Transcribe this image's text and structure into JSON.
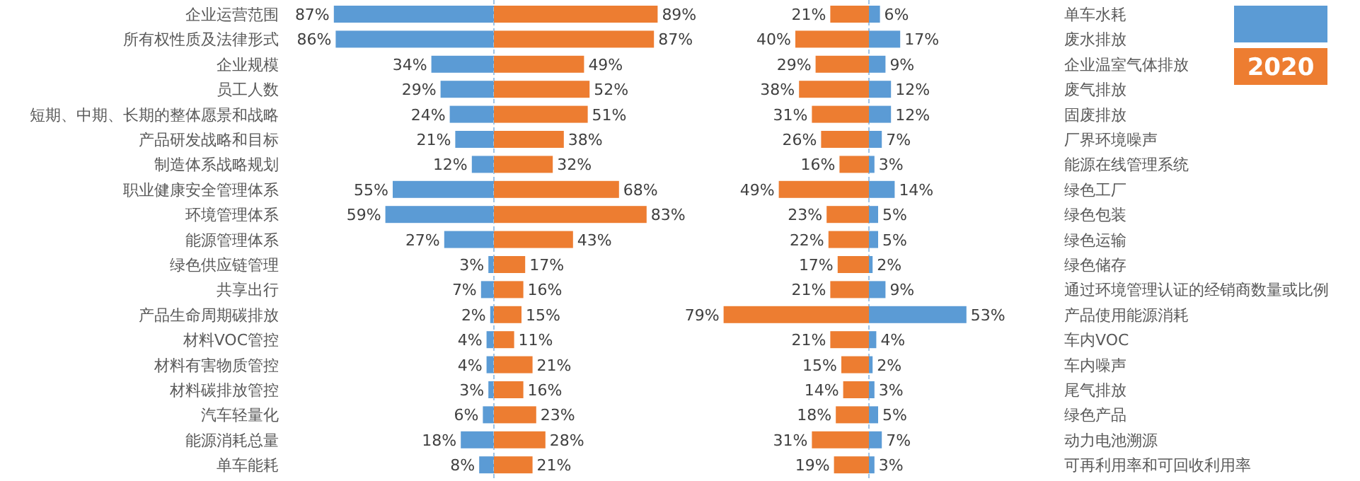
{
  "chart_data": [
    {
      "type": "bar",
      "orientation": "horizontal",
      "categories": [
        "企业运营范围",
        "所有权性质及法律形式",
        "企业规模",
        "员工人数",
        "短期、中期、长期的整体愿景和战略",
        "产品研发战略和目标",
        "制造体系战略规划",
        "职业健康安全管理体系",
        "环境管理体系",
        "能源管理体系",
        "绿色供应链管理",
        "共享出行",
        "产品生命周期碳排放",
        "材料VOC管控",
        "材料有害物质管控",
        "材料碳排放管控",
        "汽车轻量化",
        "能源消耗总量",
        "单车能耗"
      ],
      "series": [
        {
          "color": "#5b9bd5",
          "values": [
            87,
            86,
            34,
            29,
            24,
            21,
            12,
            55,
            59,
            27,
            3,
            7,
            2,
            4,
            4,
            3,
            6,
            18,
            8
          ],
          "value_labels": [
            "87%",
            "86%",
            "34%",
            "29%",
            "24%",
            "21%",
            "12%",
            "55%",
            "59%",
            "27%",
            "3%",
            "7%",
            "2%",
            "4%",
            "4%",
            "3%",
            "6%",
            "18%",
            "8%"
          ]
        }
      ]
    },
    {
      "type": "bar",
      "orientation": "horizontal",
      "categories": [
        null,
        null,
        null,
        null,
        null,
        null,
        null,
        null,
        null,
        null,
        null,
        null,
        null,
        null,
        null,
        null,
        null,
        null,
        null
      ],
      "series": [
        {
          "color": "#ed7d31",
          "values": [
            89,
            87,
            49,
            52,
            51,
            38,
            32,
            68,
            83,
            43,
            17,
            16,
            15,
            11,
            21,
            16,
            23,
            28,
            21
          ],
          "value_labels": [
            "89%",
            "87%",
            "49%",
            "52%",
            "51%",
            "38%",
            "32%",
            "68%",
            "83%",
            "43%",
            "17%",
            "16%",
            "15%",
            "11%",
            "21%",
            "16%",
            "23%",
            "28%",
            "21%"
          ]
        }
      ]
    },
    {
      "type": "bar",
      "orientation": "horizontal",
      "legend": "top right",
      "categories": [
        null,
        null,
        null,
        null,
        null,
        null,
        null,
        null,
        null,
        null,
        null,
        null,
        null,
        null,
        null,
        null,
        null,
        null,
        null
      ],
      "series": [
        {
          "name": "2020",
          "color": "#ed7d31",
          "values": [
            21,
            40,
            29,
            38,
            31,
            26,
            16,
            49,
            23,
            22,
            17,
            21,
            79,
            21,
            15,
            14,
            18,
            31,
            19
          ],
          "value_labels": [
            "21%",
            "40%",
            "29%",
            "38%",
            "31%",
            "26%",
            "16%",
            "49%",
            "23%",
            "22%",
            "17%",
            "21%",
            "79%",
            "21%",
            "15%",
            "14%",
            "18%",
            "31%",
            "19%"
          ]
        }
      ]
    },
    {
      "type": "bar",
      "orientation": "horizontal",
      "categories": [
        "单车水耗",
        "废水排放",
        "企业温室气体排放",
        "废气排放",
        "固废排放",
        "厂界环境噪声",
        "能源在线管理系统",
        "绿色工厂",
        "绿色包装",
        "绿色运输",
        "绿色储存",
        "通过环境管理认证的经销商数量或比例",
        "产品使用能源消耗",
        "车内VOC",
        "车内噪声",
        "尾气排放",
        "绿色产品",
        "动力电池溯源",
        "可再利用率和可回收利用率"
      ],
      "series": [
        {
          "color": "#5b9bd5",
          "values": [
            6,
            17,
            9,
            12,
            12,
            7,
            3,
            14,
            5,
            5,
            2,
            9,
            53,
            4,
            2,
            3,
            5,
            7,
            3
          ],
          "value_labels": [
            "6%",
            "17%",
            "9%",
            "12%",
            "12%",
            "7%",
            "3%",
            "14%",
            "5%",
            "5%",
            "2%",
            "9%",
            "53%",
            "4%",
            "2%",
            "3%",
            "5%",
            "7%",
            "3%"
          ]
        }
      ]
    }
  ]
}
